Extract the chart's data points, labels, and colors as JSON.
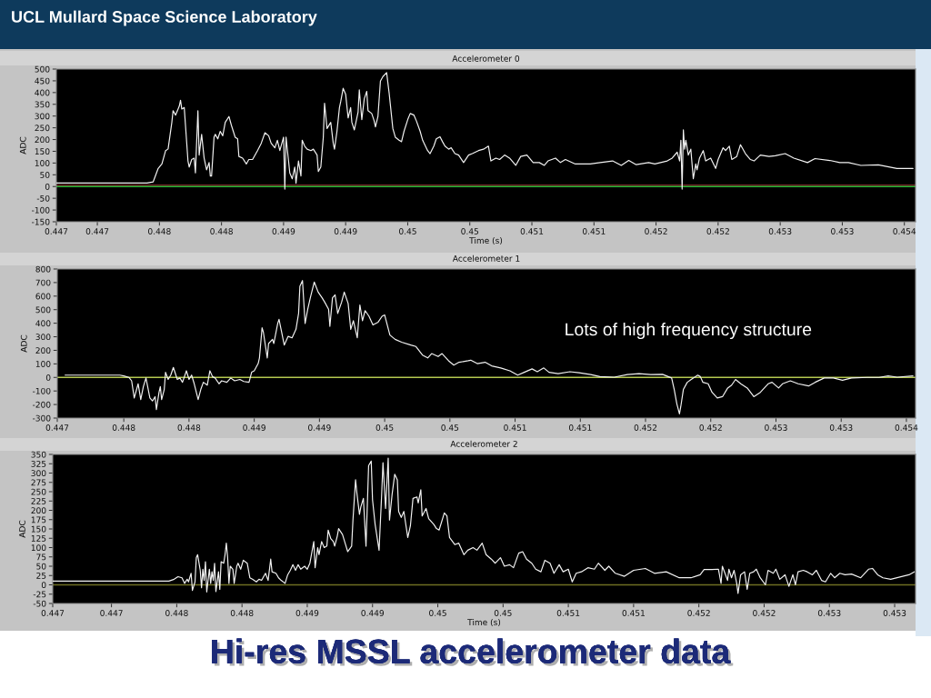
{
  "chart_data": [
    {
      "type": "line",
      "title": "Accelerometer 0",
      "xlabel": "Time (s)",
      "ylabel": "ADC",
      "annotations": [
        "UCL Mullard Space Science Laboratory",
        "Hi-res MSSL accelerometer data"
      ],
      "color": "#f2f2f2",
      "x": [
        0.44717,
        0.4479,
        0.44795,
        0.44799,
        0.44802,
        0.44805,
        0.44807,
        0.4481,
        0.44811,
        0.44813,
        0.44816,
        0.44817,
        0.44818,
        0.4482,
        0.44821,
        0.44823,
        0.44824,
        0.44826,
        0.44828,
        0.44829,
        0.44831,
        0.44832,
        0.44834,
        0.44836,
        0.44838,
        0.4484,
        0.44841,
        0.44842,
        0.44844,
        0.44845,
        0.44847,
        0.44849,
        0.44851,
        0.44853,
        0.44856,
        0.44858,
        0.44861,
        0.44863,
        0.44864,
        0.44867,
        0.4487,
        0.44872,
        0.44875,
        0.44879,
        0.44882,
        0.44885,
        0.44888,
        0.4489,
        0.44893,
        0.44895,
        0.44897,
        0.449,
        0.44901,
        0.44902,
        0.44904,
        0.44905,
        0.44907,
        0.44909,
        0.4491,
        0.44912,
        0.44914,
        0.44915,
        0.44917,
        0.44919,
        0.44922,
        0.44924,
        0.44927,
        0.44928,
        0.4493,
        0.44932,
        0.44933,
        0.44935,
        0.44938,
        0.4494,
        0.44941,
        0.44943,
        0.44945,
        0.44946,
        0.44948,
        0.4495,
        0.44952,
        0.44954,
        0.44955,
        0.44957,
        0.4496,
        0.44961,
        0.44963,
        0.44965,
        0.44967,
        0.44968,
        0.44971,
        0.44973,
        0.44974,
        0.44976,
        0.44978,
        0.4498,
        0.44983,
        0.44985,
        0.44988,
        0.4499,
        0.44993,
        0.44995,
        0.44997,
        0.45,
        0.45002,
        0.45005,
        0.45007,
        0.4501,
        0.45012,
        0.45016,
        0.45018,
        0.45021,
        0.45023,
        0.45026,
        0.45028,
        0.4503,
        0.45033,
        0.45035,
        0.45038,
        0.45041,
        0.45045,
        0.45049,
        0.45052,
        0.45057,
        0.45061,
        0.45065,
        0.45067,
        0.45071,
        0.45074,
        0.45078,
        0.45082,
        0.45087,
        0.45091,
        0.45096,
        0.45101,
        0.45106,
        0.4511,
        0.45113,
        0.45119,
        0.45123,
        0.45127,
        0.45135,
        0.45147,
        0.45155,
        0.45165,
        0.45172,
        0.45178,
        0.45184,
        0.45194,
        0.45199,
        0.45209,
        0.45213,
        0.45217,
        0.45219,
        0.4522,
        0.45221,
        0.45222,
        0.45223,
        0.45224,
        0.45226,
        0.45228,
        0.4523,
        0.45232,
        0.45233,
        0.45235,
        0.45238,
        0.4524,
        0.45244,
        0.45248,
        0.4525,
        0.45254,
        0.45256,
        0.45259,
        0.45261,
        0.45265,
        0.45268,
        0.45272,
        0.45276,
        0.45279,
        0.45284,
        0.45291,
        0.45296,
        0.45304,
        0.45311,
        0.45322,
        0.45328,
        0.4534,
        0.45348,
        0.45355,
        0.45365,
        0.45379,
        0.45394,
        0.45407
      ],
      "values": [
        15,
        15,
        20,
        77,
        96,
        153,
        160,
        273,
        323,
        304,
        342,
        367,
        330,
        336,
        260,
        109,
        83,
        115,
        121,
        58,
        323,
        134,
        222,
        121,
        71,
        102,
        45,
        45,
        210,
        222,
        203,
        235,
        216,
        273,
        298,
        260,
        210,
        203,
        128,
        121,
        96,
        115,
        115,
        153,
        184,
        229,
        216,
        184,
        165,
        197,
        153,
        210,
        -11,
        210,
        109,
        58,
        33,
        83,
        14,
        109,
        45,
        197,
        172,
        159,
        153,
        159,
        134,
        64,
        83,
        210,
        355,
        247,
        273,
        184,
        159,
        235,
        336,
        361,
        418,
        393,
        292,
        336,
        273,
        241,
        317,
        412,
        285,
        374,
        405,
        323,
        311,
        279,
        254,
        298,
        449,
        468,
        485,
        399,
        247,
        210,
        197,
        191,
        235,
        285,
        311,
        304,
        279,
        235,
        197,
        153,
        140,
        172,
        203,
        212,
        191,
        172,
        159,
        165,
        140,
        134,
        102,
        134,
        140,
        153,
        159,
        172,
        109,
        121,
        115,
        134,
        121,
        90,
        128,
        134,
        102,
        102,
        90,
        109,
        121,
        102,
        115,
        96,
        96,
        102,
        109,
        90,
        111,
        93,
        102,
        96,
        109,
        121,
        146,
        109,
        197,
        -11,
        241,
        159,
        197,
        134,
        159,
        33,
        96,
        71,
        121,
        153,
        109,
        121,
        77,
        115,
        165,
        153,
        172,
        115,
        128,
        178,
        140,
        115,
        109,
        134,
        128,
        131,
        140,
        121,
        102,
        119,
        111,
        102,
        102,
        90,
        92,
        77,
        77
      ],
      "xlim": [
        0.44717,
        0.45409
      ],
      "ylim": [
        -150,
        500
      ],
      "xticks": [
        {
          "value": 0.44717,
          "label": "0.447"
        },
        {
          "value": 0.4475,
          "label": "0.447"
        },
        0.448,
        {
          "value": 0.4485,
          "label": "0.448"
        },
        0.449,
        {
          "value": 0.4495,
          "label": "0.449"
        },
        0.45,
        {
          "value": 0.4505,
          "label": "0.45"
        },
        0.451,
        {
          "value": 0.4515,
          "label": "0.451"
        },
        0.452,
        {
          "value": 0.4525,
          "label": "0.452"
        },
        0.453,
        {
          "value": 0.4535,
          "label": "0.453"
        },
        0.454
      ],
      "yticks": [
        -150,
        -100,
        -50,
        0,
        50,
        100,
        150,
        200,
        250,
        300,
        350,
        400,
        450,
        500
      ],
      "ref_lines": [
        {
          "axis": "y",
          "value": 0,
          "color": "#2fbf3a"
        },
        {
          "axis": "y",
          "value": 6,
          "color": "#7a2a2a"
        }
      ]
    },
    {
      "type": "line",
      "title": "Accelerometer 1",
      "ylabel": "ADC",
      "annotations": [
        "Lots of high frequency structure"
      ],
      "color": "#f2f2f2",
      "x": [
        0.44755,
        0.44797,
        0.448,
        0.44804,
        0.44806,
        0.44808,
        0.44811,
        0.44813,
        0.44815,
        0.44817,
        0.4482,
        0.44822,
        0.44824,
        0.44825,
        0.44827,
        0.44828,
        0.44829,
        0.44831,
        0.44832,
        0.44834,
        0.44836,
        0.44838,
        0.44841,
        0.44843,
        0.44845,
        0.44848,
        0.4485,
        0.44852,
        0.44854,
        0.44857,
        0.44859,
        0.44861,
        0.44864,
        0.44866,
        0.44868,
        0.4487,
        0.44873,
        0.44875,
        0.44879,
        0.44882,
        0.44885,
        0.44889,
        0.44892,
        0.44896,
        0.44898,
        0.449,
        0.44903,
        0.44904,
        0.44906,
        0.44907,
        0.4491,
        0.44911,
        0.44914,
        0.44915,
        0.44918,
        0.44919,
        0.44921,
        0.44923,
        0.44926,
        0.44929,
        0.44932,
        0.44934,
        0.44935,
        0.44937,
        0.44939,
        0.44941,
        0.44943,
        0.44946,
        0.44949,
        0.44952,
        0.44954,
        0.44957,
        0.44958,
        0.4496,
        0.44962,
        0.44964,
        0.44967,
        0.44969,
        0.44972,
        0.44974,
        0.44976,
        0.44979,
        0.44981,
        0.44983,
        0.44985,
        0.44988,
        0.44991,
        0.44995,
        0.44998,
        0.45,
        0.45004,
        0.45008,
        0.45013,
        0.4502,
        0.45024,
        0.45029,
        0.45033,
        0.45036,
        0.45041,
        0.45044,
        0.45049,
        0.45053,
        0.45057,
        0.45064,
        0.45066,
        0.45071,
        0.45077,
        0.45082,
        0.45089,
        0.45096,
        0.45102,
        0.45107,
        0.45113,
        0.45117,
        0.45122,
        0.45126,
        0.45133,
        0.45142,
        0.45149,
        0.45158,
        0.45165,
        0.45176,
        0.45186,
        0.45195,
        0.45204,
        0.45213,
        0.4522,
        0.45222,
        0.45224,
        0.45226,
        0.45227,
        0.45229,
        0.45232,
        0.45235,
        0.4524,
        0.45242,
        0.45244,
        0.45248,
        0.45251,
        0.45255,
        0.45259,
        0.45263,
        0.45266,
        0.45269,
        0.45273,
        0.45278,
        0.45283,
        0.45288,
        0.45294,
        0.45297,
        0.45302,
        0.45305,
        0.45311,
        0.45317,
        0.45325,
        0.4533,
        0.45337,
        0.45344,
        0.45351,
        0.45358,
        0.4537,
        0.45379,
        0.45386,
        0.45393,
        0.45405
      ],
      "values": [
        17,
        17,
        11,
        0,
        -25,
        -152,
        -47,
        -163,
        -68,
        -4,
        -152,
        -173,
        -142,
        -237,
        -110,
        -68,
        -163,
        -89,
        38,
        -15,
        17,
        74,
        -15,
        -4,
        -36,
        49,
        -15,
        17,
        -47,
        -163,
        -89,
        -36,
        -57,
        49,
        6,
        -4,
        -47,
        -25,
        -36,
        -4,
        -25,
        -15,
        -30,
        -36,
        38,
        49,
        102,
        144,
        366,
        334,
        144,
        250,
        281,
        250,
        398,
        429,
        334,
        239,
        303,
        292,
        355,
        472,
        673,
        715,
        398,
        503,
        588,
        704,
        630,
        588,
        556,
        503,
        377,
        588,
        609,
        472,
        556,
        630,
        546,
        355,
        419,
        292,
        535,
        419,
        493,
        451,
        387,
        408,
        451,
        461,
        313,
        281,
        260,
        239,
        228,
        165,
        144,
        176,
        154,
        176,
        123,
        91,
        112,
        123,
        127,
        102,
        112,
        85,
        70,
        49,
        17,
        38,
        63,
        42,
        70,
        38,
        28,
        42,
        34,
        21,
        6,
        2,
        21,
        28,
        21,
        23,
        -4,
        -89,
        -195,
        -269,
        -216,
        -89,
        -36,
        -15,
        17,
        6,
        -36,
        -47,
        -110,
        -152,
        -142,
        -78,
        -57,
        -15,
        -47,
        -78,
        -142,
        -110,
        -47,
        -36,
        -78,
        -47,
        -25,
        -47,
        -63,
        -36,
        -4,
        -4,
        -21,
        -4,
        0,
        0,
        11,
        2,
        11
      ],
      "xlim": [
        0.44749,
        0.45407
      ],
      "ylim": [
        -300,
        800
      ],
      "xticks": [
        {
          "value": 0.44749,
          "label": "0.447"
        },
        0.448,
        {
          "value": 0.4485,
          "label": "0.448"
        },
        0.449,
        {
          "value": 0.4495,
          "label": "0.449"
        },
        0.45,
        {
          "value": 0.4505,
          "label": "0.45"
        },
        0.451,
        {
          "value": 0.4515,
          "label": "0.451"
        },
        0.452,
        {
          "value": 0.4525,
          "label": "0.452"
        },
        0.453,
        {
          "value": 0.4535,
          "label": "0.453"
        },
        0.454
      ],
      "yticks": [
        -300,
        -200,
        -100,
        0,
        100,
        200,
        300,
        400,
        500,
        600,
        700,
        800
      ],
      "ref_lines": [
        {
          "axis": "y",
          "value": 0,
          "color": "#b4c850"
        }
      ]
    },
    {
      "type": "line",
      "title": "Accelerometer 2",
      "xlabel": "Time (s)",
      "ylabel": "ADC",
      "color": "#f2f2f2",
      "x": [
        0.44705,
        0.44794,
        0.44798,
        0.44801,
        0.44804,
        0.44806,
        0.44808,
        0.44809,
        0.44811,
        0.44812,
        0.44814,
        0.44815,
        0.44816,
        0.44818,
        0.44819,
        0.4482,
        0.44821,
        0.44822,
        0.44823,
        0.44825,
        0.44826,
        0.44827,
        0.44828,
        0.44829,
        0.4483,
        0.44832,
        0.44833,
        0.44834,
        0.44836,
        0.44837,
        0.44838,
        0.44839,
        0.4484,
        0.44841,
        0.44843,
        0.44844,
        0.44846,
        0.44847,
        0.44849,
        0.44851,
        0.44854,
        0.44856,
        0.44858,
        0.44861,
        0.44863,
        0.44865,
        0.44868,
        0.4487,
        0.44872,
        0.44873,
        0.44876,
        0.44878,
        0.4488,
        0.44883,
        0.44885,
        0.44887,
        0.44889,
        0.44891,
        0.44893,
        0.44895,
        0.44898,
        0.449,
        0.44902,
        0.44905,
        0.44906,
        0.44908,
        0.44909,
        0.44911,
        0.44913,
        0.44915,
        0.44916,
        0.44918,
        0.4492,
        0.44921,
        0.44923,
        0.44924,
        0.44927,
        0.44929,
        0.44931,
        0.44934,
        0.44935,
        0.44937,
        0.44938,
        0.4494,
        0.44941,
        0.44943,
        0.44945,
        0.44947,
        0.44949,
        0.4495,
        0.44952,
        0.44955,
        0.44957,
        0.44958,
        0.4496,
        0.44962,
        0.44963,
        0.44965,
        0.44967,
        0.44969,
        0.4497,
        0.44972,
        0.44974,
        0.44977,
        0.44979,
        0.44981,
        0.44984,
        0.44985,
        0.44987,
        0.44988,
        0.44991,
        0.44993,
        0.44997,
        0.44999,
        0.45001,
        0.45005,
        0.45007,
        0.45009,
        0.45013,
        0.45016,
        0.4502,
        0.45023,
        0.45027,
        0.4503,
        0.45034,
        0.45037,
        0.45041,
        0.45044,
        0.45048,
        0.45051,
        0.45055,
        0.45058,
        0.45062,
        0.45065,
        0.45068,
        0.45072,
        0.45075,
        0.45079,
        0.45082,
        0.45086,
        0.45089,
        0.45093,
        0.45096,
        0.451,
        0.45103,
        0.45106,
        0.4511,
        0.45115,
        0.4512,
        0.45123,
        0.45128,
        0.45131,
        0.45136,
        0.45143,
        0.4515,
        0.45159,
        0.45166,
        0.45175,
        0.45185,
        0.45194,
        0.45201,
        0.45204,
        0.4521,
        0.45215,
        0.45217,
        0.45218,
        0.4522,
        0.45222,
        0.45223,
        0.45225,
        0.45227,
        0.45229,
        0.4523,
        0.45232,
        0.45235,
        0.45237,
        0.45239,
        0.45242,
        0.45244,
        0.45247,
        0.45251,
        0.45253,
        0.45257,
        0.45259,
        0.45262,
        0.45266,
        0.45269,
        0.45272,
        0.45274,
        0.45276,
        0.4528,
        0.45283,
        0.45287,
        0.4529,
        0.45294,
        0.45297,
        0.45301,
        0.45304,
        0.45308,
        0.45312,
        0.45317,
        0.45324,
        0.4533,
        0.45333,
        0.45337,
        0.45341,
        0.45347,
        0.45354,
        0.45361,
        0.45365
      ],
      "values": [
        10,
        10,
        15,
        22,
        19,
        4,
        15,
        8,
        31,
        -15,
        8,
        73,
        81,
        39,
        -8,
        42,
        12,
        62,
        -19,
        42,
        4,
        35,
        12,
        58,
        -18,
        35,
        -12,
        62,
        58,
        81,
        112,
        73,
        4,
        50,
        42,
        4,
        50,
        58,
        42,
        66,
        58,
        19,
        15,
        8,
        15,
        12,
        31,
        12,
        69,
        35,
        31,
        19,
        12,
        4,
        27,
        39,
        54,
        39,
        54,
        42,
        50,
        42,
        58,
        116,
        46,
        100,
        81,
        116,
        100,
        104,
        147,
        124,
        116,
        104,
        131,
        151,
        135,
        112,
        89,
        104,
        174,
        282,
        247,
        189,
        209,
        232,
        104,
        320,
        332,
        228,
        162,
        93,
        243,
        328,
        205,
        340,
        174,
        243,
        297,
        282,
        197,
        181,
        197,
        127,
        158,
        232,
        236,
        220,
        255,
        185,
        205,
        178,
        162,
        151,
        147,
        193,
        185,
        127,
        108,
        112,
        81,
        93,
        100,
        93,
        112,
        81,
        69,
        58,
        73,
        50,
        54,
        46,
        85,
        89,
        69,
        58,
        42,
        35,
        66,
        58,
        31,
        54,
        35,
        42,
        8,
        31,
        35,
        46,
        42,
        58,
        39,
        50,
        31,
        23,
        39,
        44,
        31,
        35,
        19,
        19,
        27,
        41,
        41,
        42,
        4,
        50,
        31,
        12,
        42,
        19,
        39,
        4,
        -23,
        27,
        35,
        -12,
        31,
        35,
        42,
        19,
        0,
        39,
        31,
        42,
        15,
        27,
        -4,
        27,
        0,
        35,
        39,
        35,
        27,
        39,
        12,
        8,
        31,
        19,
        31,
        27,
        29,
        19,
        42,
        44,
        27,
        19,
        15,
        21,
        27,
        35
      ],
      "xlim": [
        0.44705,
        0.45366
      ],
      "ylim": [
        -50,
        350
      ],
      "xticks": [
        {
          "value": 0.44705,
          "label": "0.447"
        },
        {
          "value": 0.4475,
          "label": "0.447"
        },
        0.448,
        {
          "value": 0.4485,
          "label": "0.448"
        },
        0.449,
        {
          "value": 0.4495,
          "label": "0.449"
        },
        0.45,
        {
          "value": 0.4505,
          "label": "0.45"
        },
        0.451,
        {
          "value": 0.4515,
          "label": "0.451"
        },
        0.452,
        {
          "value": 0.4525,
          "label": "0.452"
        },
        0.453,
        {
          "value": 0.4535,
          "label": "0.453"
        }
      ],
      "yticks": [
        -50,
        -25,
        0,
        25,
        50,
        75,
        100,
        125,
        150,
        175,
        200,
        225,
        250,
        275,
        300,
        325,
        350
      ],
      "ref_lines": [
        {
          "axis": "y",
          "value": 0,
          "color": "#6e6e22"
        }
      ]
    }
  ]
}
